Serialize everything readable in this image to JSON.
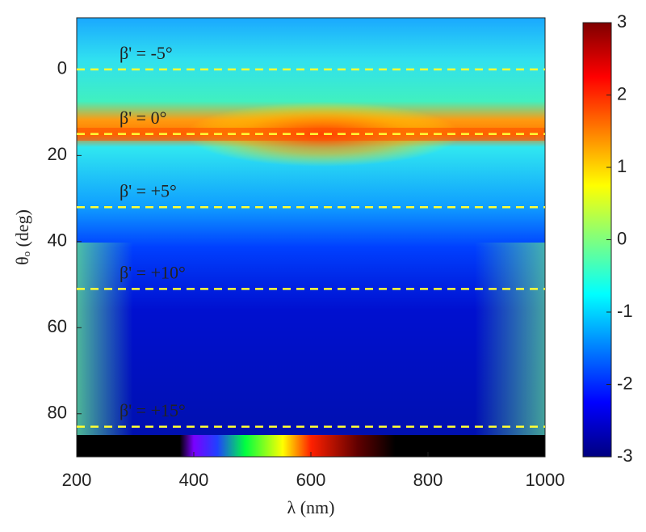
{
  "chart_data": {
    "type": "heatmap",
    "xlabel": "λ (nm)",
    "ylabel": "θₒ (deg)",
    "xlim": [
      200,
      1000
    ],
    "xticks": [
      200,
      400,
      600,
      800,
      1000
    ],
    "ylim": [
      -12,
      90
    ],
    "yticks": [
      0,
      20,
      40,
      60,
      80
    ],
    "y_reversed": true,
    "clim": [
      -3,
      3
    ],
    "cticks": [
      -3,
      -2,
      -1,
      0,
      1,
      2,
      3
    ],
    "colormap": [
      "#00007f",
      "#0000ff",
      "#007fff",
      "#00ffff",
      "#7fff7f",
      "#ffff00",
      "#ff7f00",
      "#ff0000",
      "#7f0000"
    ],
    "line_color": "#ffff33",
    "annotations": [
      {
        "text": "β' = -5°",
        "value": 0,
        "color": "#ffff33"
      },
      {
        "text": "β' = 0°",
        "value": 15,
        "color": "#000000"
      },
      {
        "text": "β' = +5°",
        "value": 32,
        "color": "#ffff33"
      },
      {
        "text": "β' = +10°",
        "value": 51,
        "color": "#ffff33"
      },
      {
        "text": "β' = +15°",
        "value": 83,
        "color": "#ffff33"
      }
    ]
  }
}
